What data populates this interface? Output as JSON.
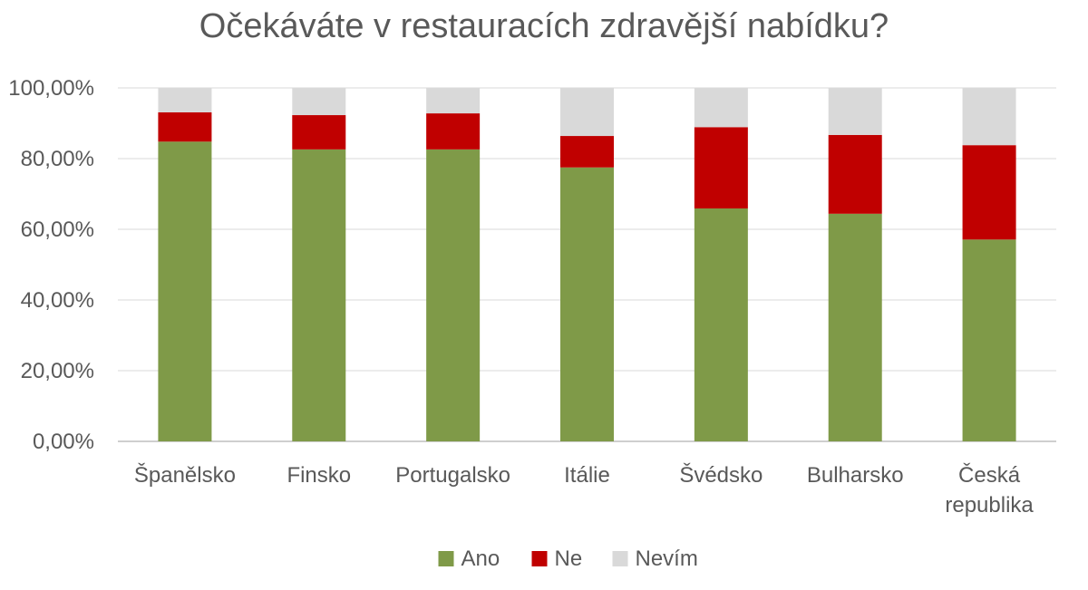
{
  "chart_data": {
    "type": "bar",
    "stacked": true,
    "title": "Očekáváte v restauracích zdravější nabídku?",
    "categories": [
      [
        "Španělsko"
      ],
      [
        "Finsko"
      ],
      [
        "Portugalsko"
      ],
      [
        "Itálie"
      ],
      [
        "Švédsko"
      ],
      [
        "Bulharsko"
      ],
      [
        "Česká",
        "republika"
      ]
    ],
    "series": [
      {
        "name": "Ano",
        "color": "#7f9a48",
        "values": [
          84.8,
          82.6,
          82.6,
          77.5,
          65.9,
          64.4,
          57.1
        ]
      },
      {
        "name": "Ne",
        "color": "#c00000",
        "values": [
          8.3,
          9.7,
          10.2,
          8.9,
          23.0,
          22.3,
          26.7
        ]
      },
      {
        "name": "Nevím",
        "color": "#d9d9d9",
        "values": [
          6.9,
          7.7,
          7.2,
          13.6,
          11.1,
          13.3,
          16.2
        ]
      }
    ],
    "yticks": [
      "0,00%",
      "20,00%",
      "40,00%",
      "60,00%",
      "80,00%",
      "100,00%"
    ],
    "ylim": [
      0,
      100
    ],
    "grid": true,
    "legend": "bottom"
  }
}
